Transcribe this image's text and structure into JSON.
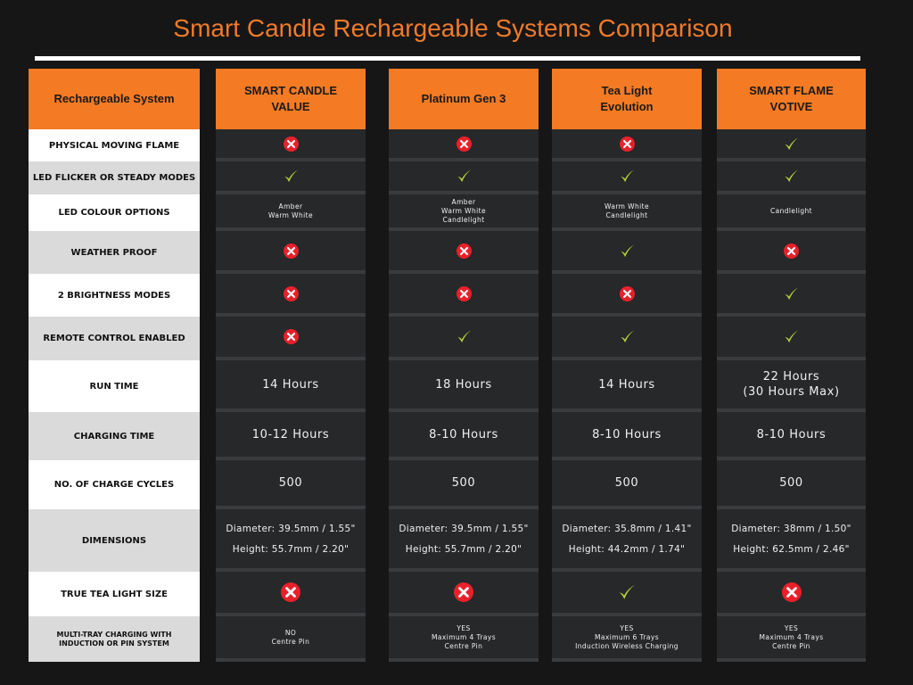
{
  "title": "Smart Candle Rechargeable Systems Comparison",
  "header_first": "Rechargeable System",
  "products": [
    {
      "name": "SMART CANDLE VALUE"
    },
    {
      "name": "Platinum Gen 3"
    },
    {
      "name": "Tea Light Evolution"
    },
    {
      "name": "SMART FLAME VOTIVE"
    }
  ],
  "features": [
    {
      "label": "PHYSICAL MOVING FLAME",
      "type": "icon",
      "values": [
        "x",
        "x",
        "x",
        "check"
      ]
    },
    {
      "label": "LED FLICKER OR STEADY MODES",
      "type": "icon",
      "values": [
        "check",
        "check",
        "check",
        "check"
      ]
    },
    {
      "label": "LED COLOUR OPTIONS",
      "type": "tiny",
      "values": [
        [
          "Amber",
          "Warm White"
        ],
        [
          "Amber",
          "Warm White",
          "Candlelight"
        ],
        [
          "Warm White",
          "Candlelight"
        ],
        [
          "Candlelight"
        ]
      ]
    },
    {
      "label": "WEATHER PROOF",
      "type": "icon",
      "values": [
        "x",
        "x",
        "check",
        "x"
      ]
    },
    {
      "label": "2 BRIGHTNESS MODES",
      "type": "icon",
      "values": [
        "x",
        "x",
        "x",
        "check"
      ]
    },
    {
      "label": "REMOTE CONTROL ENABLED",
      "type": "icon",
      "values": [
        "x",
        "check",
        "check",
        "check"
      ]
    },
    {
      "label": "RUN TIME",
      "type": "big",
      "values": [
        [
          "14 Hours"
        ],
        [
          "18 Hours"
        ],
        [
          "14 Hours"
        ],
        [
          "22 Hours",
          "(30 Hours Max)"
        ]
      ]
    },
    {
      "label": "CHARGING TIME",
      "type": "big",
      "values": [
        [
          "10-12 Hours"
        ],
        [
          "8-10 Hours"
        ],
        [
          "8-10 Hours"
        ],
        [
          "8-10 Hours"
        ]
      ]
    },
    {
      "label": "NO. OF CHARGE CYCLES",
      "type": "big",
      "values": [
        [
          "500"
        ],
        [
          "500"
        ],
        [
          "500"
        ],
        [
          "500"
        ]
      ]
    },
    {
      "label": "DIMENSIONS",
      "type": "dim",
      "values": [
        [
          "Diameter: 39.5mm / 1.55\"",
          "Height: 55.7mm / 2.20\""
        ],
        [
          "Diameter: 39.5mm / 1.55\"",
          "Height: 55.7mm / 2.20\""
        ],
        [
          "Diameter: 35.8mm / 1.41\"",
          "Height: 44.2mm / 1.74\""
        ],
        [
          "Diameter: 38mm / 1.50\"",
          "Height: 62.5mm / 2.46\""
        ]
      ]
    },
    {
      "label": "TRUE TEA LIGHT SIZE",
      "type": "iconlg",
      "values": [
        "x",
        "x",
        "check",
        "x"
      ]
    },
    {
      "label": "MULTI-TRAY CHARGING WITH INDUCTION OR PIN SYSTEM",
      "type": "tiny",
      "values": [
        [
          "NO",
          "Centre Pin"
        ],
        [
          "YES",
          "Maximum 4 Trays",
          "Centre Pin"
        ],
        [
          "YES",
          "Maximum 6 Trays",
          "Induction Wireless Charging"
        ],
        [
          "YES",
          "Maximum 4 Trays",
          "Centre Pin"
        ]
      ]
    }
  ],
  "colors": {
    "accent": "#f47a24",
    "x_icon": "#e8202a",
    "check_icon": "#b5cf3a"
  }
}
